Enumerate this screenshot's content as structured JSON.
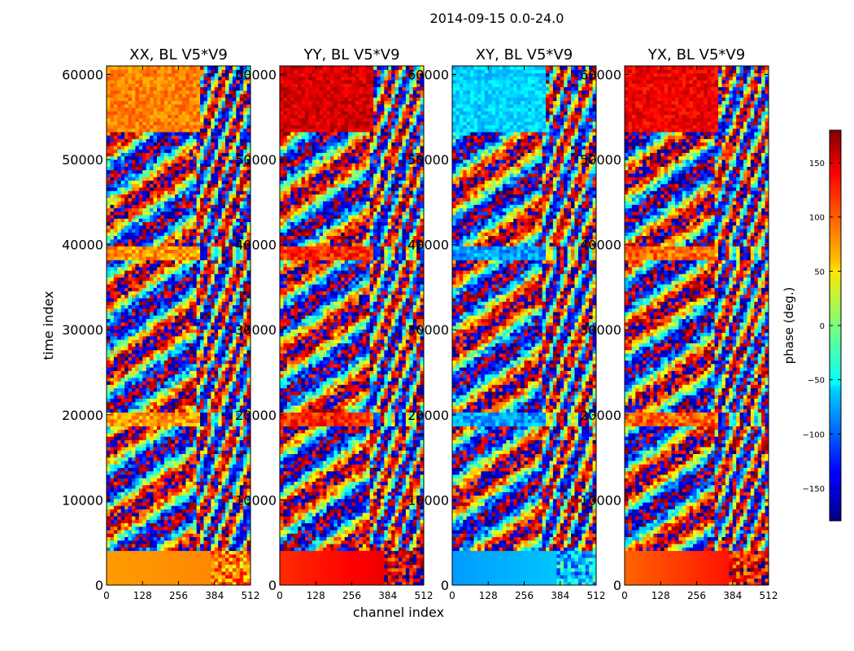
{
  "chart_data": {
    "type": "heatmap",
    "suptitle": "2014-09-15 0.0-24.0",
    "xlabel": "channel index",
    "ylabel": "time index",
    "xlim": [
      0,
      512
    ],
    "ylim": [
      0,
      61000
    ],
    "xticks": [
      0,
      128,
      256,
      384,
      512
    ],
    "yticks": [
      0,
      10000,
      20000,
      30000,
      40000,
      50000,
      60000
    ],
    "panels": [
      {
        "title": "XX, BL V5*V9",
        "base_phase": 80,
        "grad_phase": 90
      },
      {
        "title": "YY, BL V5*V9",
        "base_phase": 120,
        "grad_phase": 150
      },
      {
        "title": "XY, BL V5*V9",
        "base_phase": -80,
        "grad_phase": -60
      },
      {
        "title": "YX, BL V5*V9",
        "base_phase": 100,
        "grad_phase": 140
      }
    ],
    "colorbar": {
      "label": "phase (deg.)",
      "range": [
        -180,
        180
      ],
      "ticks": [
        -150,
        -100,
        -50,
        0,
        50,
        100,
        150
      ],
      "colormap": "jet"
    }
  }
}
